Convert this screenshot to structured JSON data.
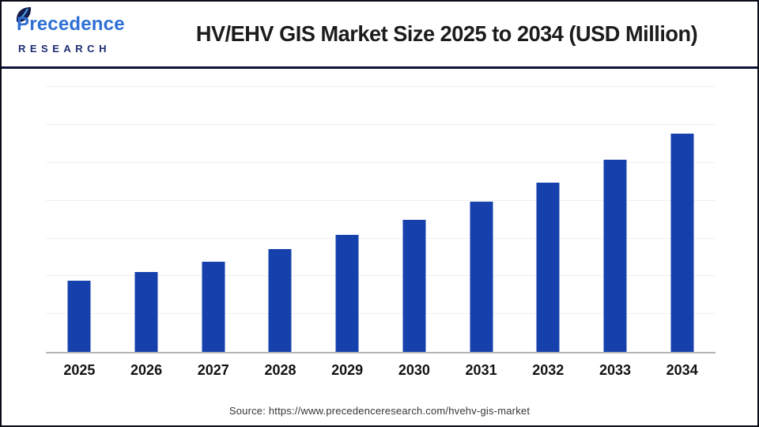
{
  "brand": {
    "name": "Precedence",
    "subname": "RESEARCH",
    "leaf_icon": "leaf-icon"
  },
  "header": {
    "title": "HV/EHV GIS Market Size 2025 to 2034 (USD Million)"
  },
  "source": {
    "text": "Source: https://www.precedenceresearch.com/hvehv-gis-market"
  },
  "colors": {
    "bar": "#1641ad",
    "divider": "#0e1138",
    "brand_blue": "#2e6fd6",
    "brand_navy": "#1d2d73",
    "gridline": "#efefef",
    "baseline": "#b5b5b5",
    "title_text": "#1c1c1c",
    "page_border": "#0a0c18"
  },
  "chart_data": {
    "type": "bar",
    "title": "HV/EHV GIS Market Size 2025 to 2034 (USD Million)",
    "categories": [
      "2025",
      "2026",
      "2027",
      "2028",
      "2029",
      "2030",
      "2031",
      "2032",
      "2033",
      "2034"
    ],
    "values": [
      1.88,
      2.11,
      2.38,
      2.73,
      3.1,
      3.49,
      3.97,
      4.48,
      5.08,
      5.77
    ],
    "value_note": "y-axis has no tick labels; values estimated from bar heights in gridline units (1 unit = 1 gridline interval). Growth ~13% per year.",
    "y_axis_unlabeled": true,
    "xlabel": "",
    "ylabel": "",
    "ylim": [
      0,
      7.28
    ],
    "gridline_count": 7,
    "pixels_per_unit": 47.8,
    "grid": true,
    "legend": false,
    "bar_color": "#1641ad"
  }
}
